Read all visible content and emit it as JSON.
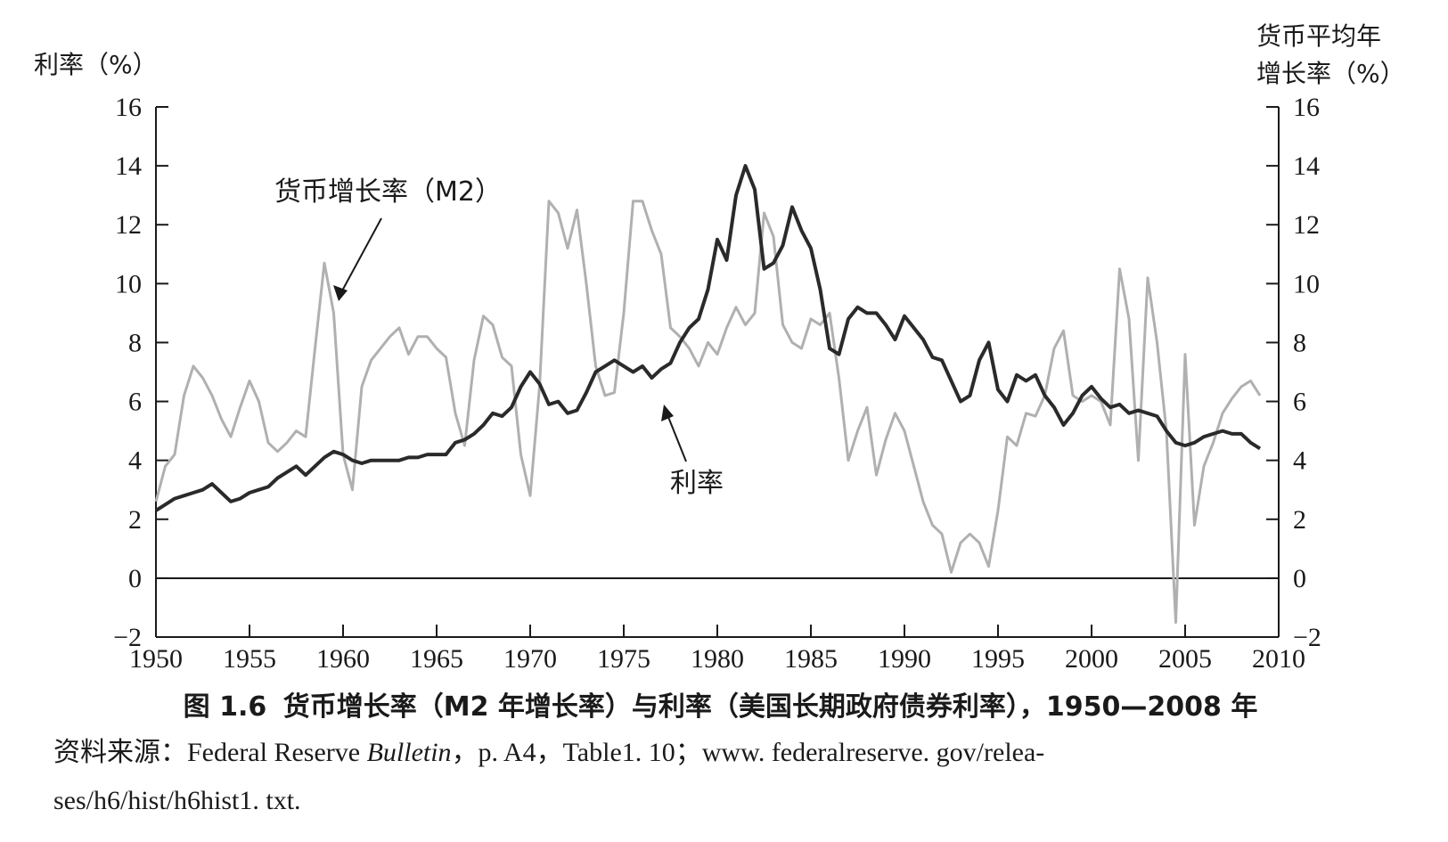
{
  "chart_data": {
    "type": "line",
    "left_axis_title": "利率（%）",
    "right_axis_title_line1": "货币平均年",
    "right_axis_title_line2": "增长率（%）",
    "ylim": [
      -2,
      16
    ],
    "y_ticks": [
      "16",
      "14",
      "12",
      "10",
      "8",
      "6",
      "4",
      "2",
      "0",
      "−2"
    ],
    "y_tick_values": [
      16,
      14,
      12,
      10,
      8,
      6,
      4,
      2,
      0,
      -2
    ],
    "xlim": [
      1950,
      2010
    ],
    "x_ticks": [
      "1950",
      "1955",
      "1960",
      "1965",
      "1970",
      "1975",
      "1980",
      "1985",
      "1990",
      "1995",
      "2000",
      "2005",
      "2010"
    ],
    "x_tick_values": [
      1950,
      1955,
      1960,
      1965,
      1970,
      1975,
      1980,
      1985,
      1990,
      1995,
      2000,
      2005,
      2010
    ],
    "annotation_m2": "货币增长率（M2）",
    "annotation_rate": "利率",
    "series": [
      {
        "name": "货币增长率（M2）",
        "color": "#b0b0b0",
        "x": [
          1950,
          1950.5,
          1951,
          1951.5,
          1952,
          1952.5,
          1953,
          1953.5,
          1954,
          1954.5,
          1955,
          1955.5,
          1956,
          1956.5,
          1957,
          1957.5,
          1958,
          1958.5,
          1959,
          1959.5,
          1960,
          1960.5,
          1961,
          1961.5,
          1962,
          1962.5,
          1963,
          1963.5,
          1964,
          1964.5,
          1965,
          1965.5,
          1966,
          1966.5,
          1967,
          1967.5,
          1968,
          1968.5,
          1969,
          1969.5,
          1970,
          1970.5,
          1971,
          1971.5,
          1972,
          1972.5,
          1973,
          1973.5,
          1974,
          1974.5,
          1975,
          1975.5,
          1976,
          1976.5,
          1977,
          1977.5,
          1978,
          1978.5,
          1979,
          1979.5,
          1980,
          1980.5,
          1981,
          1981.5,
          1982,
          1982.5,
          1983,
          1983.5,
          1984,
          1984.5,
          1985,
          1985.5,
          1986,
          1986.5,
          1987,
          1987.5,
          1988,
          1988.5,
          1989,
          1989.5,
          1990,
          1990.5,
          1991,
          1991.5,
          1992,
          1992.5,
          1993,
          1993.5,
          1994,
          1994.5,
          1995,
          1995.5,
          1996,
          1996.5,
          1997,
          1997.5,
          1998,
          1998.5,
          1999,
          1999.5,
          2000,
          2000.5,
          2001,
          2001.5,
          2002,
          2002.5,
          2003,
          2003.5,
          2004,
          2004.5,
          2005,
          2005.5,
          2006,
          2006.5,
          2007,
          2007.5,
          2008,
          2008.5,
          2009
        ],
        "y": [
          2.6,
          3.8,
          4.2,
          6.2,
          7.2,
          6.8,
          6.2,
          5.4,
          4.8,
          5.8,
          6.7,
          6.0,
          4.6,
          4.3,
          4.6,
          5.0,
          4.8,
          7.8,
          10.7,
          9.0,
          4.2,
          3.0,
          6.5,
          7.4,
          7.8,
          8.2,
          8.5,
          7.6,
          8.2,
          8.2,
          7.8,
          7.5,
          5.6,
          4.5,
          7.4,
          8.9,
          8.6,
          7.5,
          7.2,
          4.2,
          2.8,
          6.5,
          12.8,
          12.4,
          11.2,
          12.5,
          10.0,
          7.2,
          6.2,
          6.3,
          9.0,
          12.8,
          12.8,
          11.8,
          11.0,
          8.5,
          8.2,
          7.8,
          7.2,
          8.0,
          7.6,
          8.5,
          9.2,
          8.6,
          9.0,
          12.4,
          11.6,
          8.6,
          8.0,
          7.8,
          8.8,
          8.6,
          9.0,
          6.8,
          4.0,
          5.0,
          5.8,
          3.5,
          4.7,
          5.6,
          5.0,
          3.8,
          2.6,
          1.8,
          1.5,
          0.2,
          1.2,
          1.5,
          1.2,
          0.4,
          2.3,
          4.8,
          4.5,
          5.6,
          5.5,
          6.2,
          7.8,
          8.4,
          6.2,
          6.0,
          6.2,
          6.0,
          5.2,
          10.5,
          8.8,
          4.0,
          10.2,
          8.0,
          5.0,
          -1.5,
          7.6,
          1.8,
          3.8,
          4.6,
          5.6,
          6.1,
          6.5,
          6.7,
          6.2
        ]
      },
      {
        "name": "利率",
        "color": "#2a2a2a",
        "x": [
          1950,
          1950.5,
          1951,
          1951.5,
          1952,
          1952.5,
          1953,
          1953.5,
          1954,
          1954.5,
          1955,
          1955.5,
          1956,
          1956.5,
          1957,
          1957.5,
          1958,
          1958.5,
          1959,
          1959.5,
          1960,
          1960.5,
          1961,
          1961.5,
          1962,
          1962.5,
          1963,
          1963.5,
          1964,
          1964.5,
          1965,
          1965.5,
          1966,
          1966.5,
          1967,
          1967.5,
          1968,
          1968.5,
          1969,
          1969.5,
          1970,
          1970.5,
          1971,
          1971.5,
          1972,
          1972.5,
          1973,
          1973.5,
          1974,
          1974.5,
          1975,
          1975.5,
          1976,
          1976.5,
          1977,
          1977.5,
          1978,
          1978.5,
          1979,
          1979.5,
          1980,
          1980.5,
          1981,
          1981.5,
          1982,
          1982.5,
          1983,
          1983.5,
          1984,
          1984.5,
          1985,
          1985.5,
          1986,
          1986.5,
          1987,
          1987.5,
          1988,
          1988.5,
          1989,
          1989.5,
          1990,
          1990.5,
          1991,
          1991.5,
          1992,
          1992.5,
          1993,
          1993.5,
          1994,
          1994.5,
          1995,
          1995.5,
          1996,
          1996.5,
          1997,
          1997.5,
          1998,
          1998.5,
          1999,
          1999.5,
          2000,
          2000.5,
          2001,
          2001.5,
          2002,
          2002.5,
          2003,
          2003.5,
          2004,
          2004.5,
          2005,
          2005.5,
          2006,
          2006.5,
          2007,
          2007.5,
          2008,
          2008.5,
          2009
        ],
        "y": [
          2.3,
          2.5,
          2.7,
          2.8,
          2.9,
          3.0,
          3.2,
          2.9,
          2.6,
          2.7,
          2.9,
          3.0,
          3.1,
          3.4,
          3.6,
          3.8,
          3.5,
          3.8,
          4.1,
          4.3,
          4.2,
          4.0,
          3.9,
          4.0,
          4.0,
          4.0,
          4.0,
          4.1,
          4.1,
          4.2,
          4.2,
          4.2,
          4.6,
          4.7,
          4.9,
          5.2,
          5.6,
          5.5,
          5.8,
          6.5,
          7.0,
          6.6,
          5.9,
          6.0,
          5.6,
          5.7,
          6.3,
          7.0,
          7.2,
          7.4,
          7.2,
          7.0,
          7.2,
          6.8,
          7.1,
          7.3,
          8.0,
          8.5,
          8.8,
          9.8,
          11.5,
          10.8,
          13.0,
          14.0,
          13.2,
          10.5,
          10.7,
          11.3,
          12.6,
          11.8,
          11.2,
          9.8,
          7.8,
          7.6,
          8.8,
          9.2,
          9.0,
          9.0,
          8.6,
          8.1,
          8.9,
          8.5,
          8.1,
          7.5,
          7.4,
          6.7,
          6.0,
          6.2,
          7.4,
          8.0,
          6.4,
          6.0,
          6.9,
          6.7,
          6.9,
          6.2,
          5.8,
          5.2,
          5.6,
          6.2,
          6.5,
          6.1,
          5.8,
          5.9,
          5.6,
          5.7,
          5.6,
          5.5,
          5.0,
          4.6,
          4.5,
          4.6,
          4.8,
          4.9,
          5.0,
          4.9,
          4.9,
          4.6,
          4.4
        ]
      }
    ]
  },
  "caption": {
    "figure_number": "图 1.6",
    "title": "货币增长率（M2 年增长率）与利率（美国长期政府债券利率），1950—2008 年"
  },
  "source": {
    "prefix": "资料来源：Federal Reserve ",
    "italic": "Bulletin",
    "rest_line1": "，p. A4，Table1. 10；www. federalreserve. gov/relea-",
    "line2": "ses/h6/hist/h6hist1. txt."
  }
}
